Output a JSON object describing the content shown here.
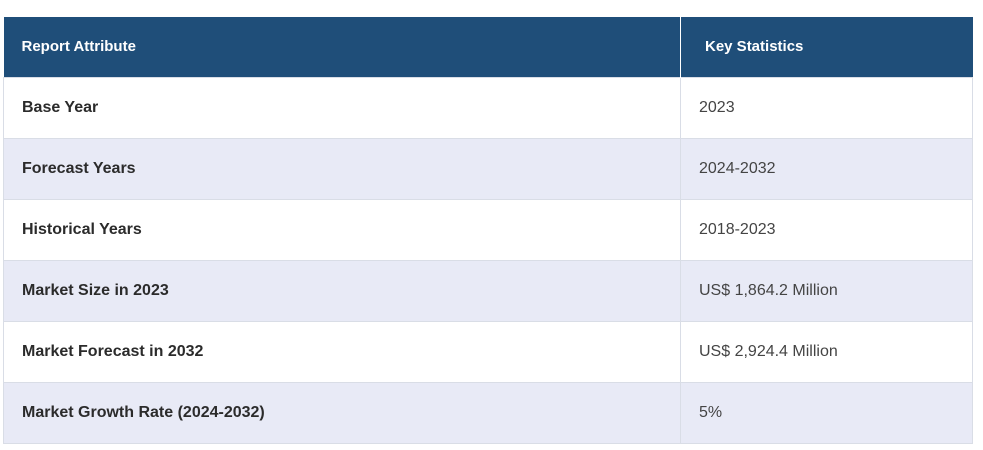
{
  "table": {
    "headers": {
      "attribute": "Report Attribute",
      "statistics": "Key Statistics"
    },
    "rows": [
      {
        "attribute": "Base Year",
        "value": "2023"
      },
      {
        "attribute": "Forecast Years",
        "value": "2024-2032"
      },
      {
        "attribute": "Historical Years",
        "value": "2018-2023"
      },
      {
        "attribute": "Market Size in 2023",
        "value": "US$ 1,864.2 Million"
      },
      {
        "attribute": "Market Forecast in 2032",
        "value": "US$ 2,924.4 Million"
      },
      {
        "attribute": "Market Growth Rate (2024-2032)",
        "value": "5%"
      }
    ]
  },
  "colors": {
    "header_bg": "#1f4e79",
    "header_text": "#ffffff",
    "stripe_bg": "#e8eaf6",
    "border": "#d9dde6"
  }
}
